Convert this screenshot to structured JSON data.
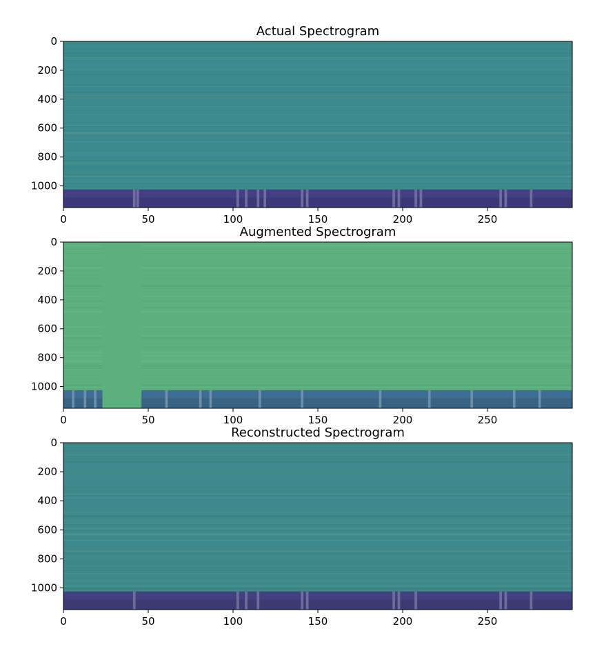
{
  "chart_data": [
    {
      "type": "heatmap",
      "title": "Actual Spectrogram",
      "xlabel": "",
      "ylabel": "",
      "xlim": [
        0,
        300
      ],
      "ylim": [
        1150,
        0
      ],
      "xticks": [
        0,
        50,
        100,
        150,
        200,
        250
      ],
      "yticks": [
        0,
        200,
        400,
        600,
        800,
        1000
      ],
      "colormap": "viridis",
      "background_color": "#3c8a8c",
      "low_band": {
        "y_from": 1025,
        "y_to": 1150,
        "color": "#433f84"
      },
      "bright_columns_x": [
        41,
        43,
        102,
        107,
        114,
        118,
        140,
        143,
        194,
        197,
        207,
        210,
        257,
        260,
        275
      ],
      "grid": false,
      "legend": "none"
    },
    {
      "type": "heatmap",
      "title": "Augmented Spectrogram",
      "xlabel": "",
      "ylabel": "",
      "xlim": [
        0,
        300
      ],
      "ylim": [
        1150,
        0
      ],
      "xticks": [
        0,
        50,
        100,
        150,
        200,
        250
      ],
      "yticks": [
        0,
        200,
        400,
        600,
        800,
        1000
      ],
      "colormap": "viridis",
      "background_color": "#5cb07d",
      "low_band": {
        "y_from": 1025,
        "y_to": 1150,
        "color": "#3e6d93"
      },
      "time_mask_x": [
        23,
        46
      ],
      "mask_color": "#5cb07d",
      "bright_columns_x": [
        5,
        12,
        18,
        60,
        80,
        86,
        115,
        140,
        186,
        215,
        240,
        265,
        280
      ],
      "grid": false,
      "legend": "none"
    },
    {
      "type": "heatmap",
      "title": "Reconstructed Spectrogram",
      "xlabel": "",
      "ylabel": "",
      "xlim": [
        0,
        300
      ],
      "ylim": [
        1150,
        0
      ],
      "xticks": [
        0,
        50,
        100,
        150,
        200,
        250
      ],
      "yticks": [
        0,
        200,
        400,
        600,
        800,
        1000
      ],
      "colormap": "viridis",
      "background_color": "#3d898b",
      "low_band": {
        "y_from": 1025,
        "y_to": 1150,
        "color": "#43407f"
      },
      "bright_columns_x": [
        41,
        102,
        107,
        114,
        140,
        143,
        194,
        197,
        207,
        257,
        260,
        275
      ],
      "grid": false,
      "legend": "none"
    }
  ]
}
